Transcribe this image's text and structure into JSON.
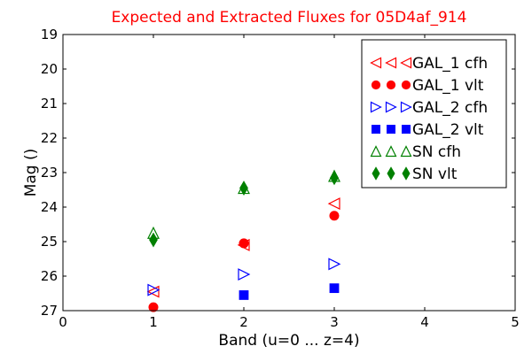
{
  "chart_data": {
    "type": "scatter",
    "title": "Expected and Extracted Fluxes for 05D4af_914",
    "xlabel": "Band (u=0 ... z=4)",
    "ylabel": "Mag ()",
    "xlim": [
      0,
      5
    ],
    "ylim": [
      27,
      19
    ],
    "y_inverted": true,
    "grid": false,
    "legend_position": "top-right",
    "x_ticks": [
      "0",
      "1",
      "2",
      "3",
      "4",
      "5"
    ],
    "y_ticks": [
      "19",
      "20",
      "21",
      "22",
      "23",
      "24",
      "25",
      "26",
      "27"
    ],
    "x_tick_values": [
      0,
      1,
      2,
      3,
      4,
      5
    ],
    "y_tick_values": [
      19,
      20,
      21,
      22,
      23,
      24,
      25,
      26,
      27
    ],
    "series": [
      {
        "name": "GAL_1 cfh",
        "marker": "triangle-left",
        "filled": false,
        "color": "#ff0000",
        "points": [
          {
            "x": 1,
            "y": 26.45
          },
          {
            "x": 2,
            "y": 25.1
          },
          {
            "x": 3,
            "y": 23.9
          }
        ]
      },
      {
        "name": "GAL_1 vlt",
        "marker": "circle",
        "filled": true,
        "color": "#ff0000",
        "points": [
          {
            "x": 1,
            "y": 26.9
          },
          {
            "x": 2,
            "y": 25.05
          },
          {
            "x": 3,
            "y": 24.25
          }
        ]
      },
      {
        "name": "GAL_2 cfh",
        "marker": "triangle-right",
        "filled": false,
        "color": "#0000ff",
        "points": [
          {
            "x": 1,
            "y": 26.4
          },
          {
            "x": 2,
            "y": 25.95
          },
          {
            "x": 3,
            "y": 25.65
          }
        ]
      },
      {
        "name": "GAL_2 vlt",
        "marker": "square",
        "filled": true,
        "color": "#0000ff",
        "points": [
          {
            "x": 2,
            "y": 26.55
          },
          {
            "x": 3,
            "y": 26.35
          }
        ]
      },
      {
        "name": "SN cfh",
        "marker": "triangle-up",
        "filled": false,
        "color": "#008000",
        "points": [
          {
            "x": 1,
            "y": 24.75
          },
          {
            "x": 2,
            "y": 23.45
          },
          {
            "x": 3,
            "y": 23.1
          }
        ]
      },
      {
        "name": "SN vlt",
        "marker": "diamond",
        "filled": true,
        "color": "#008000",
        "points": [
          {
            "x": 1,
            "y": 24.95
          },
          {
            "x": 2,
            "y": 23.45
          },
          {
            "x": 3,
            "y": 23.15
          }
        ]
      }
    ]
  }
}
